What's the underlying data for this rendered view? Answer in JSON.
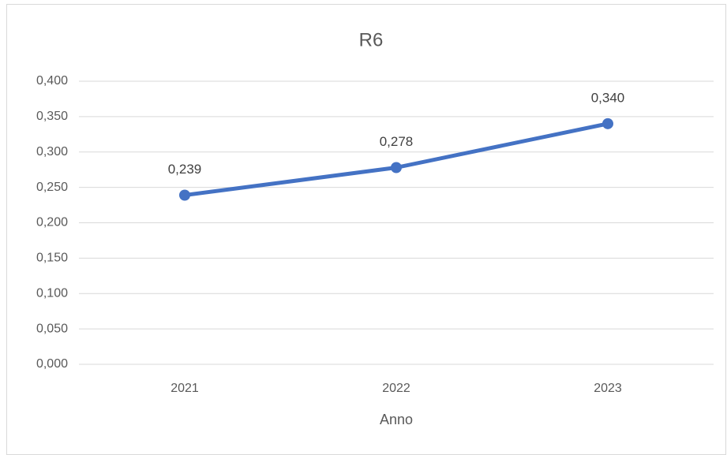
{
  "chart_data": {
    "type": "line",
    "title": "R6",
    "x_label": "Anno",
    "categories": [
      "2021",
      "2022",
      "2023"
    ],
    "values": [
      0.239,
      0.278,
      0.34
    ],
    "value_labels": [
      "0,239",
      "0,278",
      "0,340"
    ],
    "color": "#4472c4",
    "ylim": [
      0,
      0.4
    ],
    "yticks": [
      {
        "value": 0,
        "label": "0,000"
      },
      {
        "value": 0.05,
        "label": "0,050"
      },
      {
        "value": 0.1,
        "label": "0,100"
      },
      {
        "value": 0.15,
        "label": "0,150"
      },
      {
        "value": 0.2,
        "label": "0,200"
      },
      {
        "value": 0.25,
        "label": "0,250"
      },
      {
        "value": 0.3,
        "label": "0,300"
      },
      {
        "value": 0.35,
        "label": "0,350"
      },
      {
        "value": 0.4,
        "label": "0,400"
      }
    ],
    "grid": true
  }
}
